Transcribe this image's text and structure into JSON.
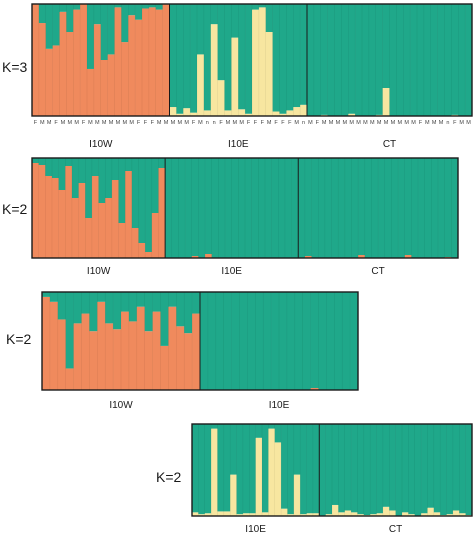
{
  "colors": {
    "orange": "#f08a5d",
    "green": "#1fa88a",
    "yellow": "#f7e6a0",
    "frame": "#1a1a1a"
  },
  "chart_data": [
    {
      "type": "bar",
      "stacked": true,
      "k_label": "K=3",
      "cluster_colors": [
        "#f08a5d",
        "#f7e6a0",
        "#1fa88a"
      ],
      "populations": [
        {
          "label": "I10W",
          "count": 20
        },
        {
          "label": "I10E",
          "count": 20
        },
        {
          "label": "CT",
          "count": 24
        }
      ],
      "sample_labels": [
        "F",
        "M",
        "M",
        "F",
        "M",
        "M",
        "M",
        "F",
        "M",
        "M",
        "M",
        "M",
        "M",
        "M",
        "M",
        "F",
        "F",
        "F",
        "M",
        "M",
        "M",
        "M",
        "M",
        "F",
        "M",
        "n",
        "n",
        "F",
        "M",
        "M",
        "M",
        "F",
        "F",
        "F",
        "M",
        "F",
        "F",
        "F",
        "M",
        "n",
        "M",
        "F",
        "M",
        "M",
        "M",
        "M",
        "M",
        "M",
        "M",
        "M",
        "M",
        "M",
        "M",
        "M",
        "M",
        "M",
        "F",
        "M",
        "M",
        "M",
        "n",
        "F",
        "M",
        "M"
      ],
      "ylim": [
        0,
        1
      ],
      "q": [
        [
          1,
          0,
          0
        ],
        [
          0.83,
          0,
          0.17
        ],
        [
          0.6,
          0,
          0.4
        ],
        [
          0.63,
          0,
          0.37
        ],
        [
          0.93,
          0,
          0.07
        ],
        [
          0.75,
          0,
          0.25
        ],
        [
          0.95,
          0,
          0.05
        ],
        [
          1,
          0,
          0
        ],
        [
          0.42,
          0,
          0.58
        ],
        [
          0.82,
          0,
          0.18
        ],
        [
          0.5,
          0,
          0.5
        ],
        [
          0.55,
          0,
          0.45
        ],
        [
          0.97,
          0,
          0.03
        ],
        [
          0.66,
          0,
          0.34
        ],
        [
          0.9,
          0,
          0.1
        ],
        [
          0.86,
          0,
          0.14
        ],
        [
          0.96,
          0,
          0.04
        ],
        [
          0.97,
          0,
          0.03
        ],
        [
          0.95,
          0,
          0.05
        ],
        [
          1,
          0,
          0
        ],
        [
          0,
          0.08,
          0.92
        ],
        [
          0,
          0.02,
          0.98
        ],
        [
          0,
          0.07,
          0.93
        ],
        [
          0,
          0.03,
          0.97
        ],
        [
          0,
          0.55,
          0.45
        ],
        [
          0,
          0.05,
          0.95
        ],
        [
          0,
          0.82,
          0.18
        ],
        [
          0,
          0.32,
          0.68
        ],
        [
          0,
          0.05,
          0.95
        ],
        [
          0,
          0.7,
          0.3
        ],
        [
          0,
          0.06,
          0.94
        ],
        [
          0,
          0.02,
          0.98
        ],
        [
          0,
          0.95,
          0.05
        ],
        [
          0,
          0.97,
          0.03
        ],
        [
          0,
          0.75,
          0.25
        ],
        [
          0,
          0.04,
          0.96
        ],
        [
          0,
          0.02,
          0.98
        ],
        [
          0,
          0.05,
          0.95
        ],
        [
          0,
          0.08,
          0.92
        ],
        [
          0,
          0.1,
          0.9
        ],
        [
          0,
          0,
          1
        ],
        [
          0,
          0,
          1
        ],
        [
          0,
          0.01,
          0.99
        ],
        [
          0,
          0,
          1
        ],
        [
          0,
          0,
          1
        ],
        [
          0,
          0,
          1
        ],
        [
          0,
          0.02,
          0.98
        ],
        [
          0,
          0,
          1
        ],
        [
          0,
          0,
          1
        ],
        [
          0,
          0,
          1
        ],
        [
          0,
          0.01,
          0.99
        ],
        [
          0,
          0.25,
          0.75
        ],
        [
          0,
          0,
          1
        ],
        [
          0,
          0,
          1
        ],
        [
          0,
          0,
          1
        ],
        [
          0,
          0,
          1
        ],
        [
          0,
          0,
          1
        ],
        [
          0,
          0,
          1
        ],
        [
          0,
          0,
          1
        ],
        [
          0,
          0,
          1
        ],
        [
          0,
          0,
          1
        ],
        [
          0,
          0.01,
          0.99
        ],
        [
          0,
          0,
          1
        ],
        [
          0,
          0,
          1
        ]
      ]
    },
    {
      "type": "bar",
      "stacked": true,
      "k_label": "K=2",
      "cluster_colors": [
        "#f08a5d",
        "#1fa88a"
      ],
      "populations": [
        {
          "label": "I10W",
          "count": 20
        },
        {
          "label": "I10E",
          "count": 20
        },
        {
          "label": "CT",
          "count": 24
        }
      ],
      "ylim": [
        0,
        1
      ],
      "q": [
        [
          0.95,
          0.05
        ],
        [
          0.93,
          0.07
        ],
        [
          0.82,
          0.18
        ],
        [
          0.8,
          0.2
        ],
        [
          0.68,
          0.32
        ],
        [
          0.92,
          0.08
        ],
        [
          0.6,
          0.4
        ],
        [
          0.75,
          0.25
        ],
        [
          0.4,
          0.6
        ],
        [
          0.82,
          0.18
        ],
        [
          0.55,
          0.45
        ],
        [
          0.6,
          0.4
        ],
        [
          0.78,
          0.22
        ],
        [
          0.35,
          0.65
        ],
        [
          0.87,
          0.13
        ],
        [
          0.3,
          0.7
        ],
        [
          0.15,
          0.85
        ],
        [
          0.06,
          0.94
        ],
        [
          0.45,
          0.55
        ],
        [
          0.9,
          0.1
        ],
        [
          0,
          1
        ],
        [
          0,
          1
        ],
        [
          0,
          1
        ],
        [
          0,
          1
        ],
        [
          0.02,
          0.98
        ],
        [
          0,
          1
        ],
        [
          0.04,
          0.96
        ],
        [
          0,
          1
        ],
        [
          0,
          1
        ],
        [
          0,
          1
        ],
        [
          0,
          1
        ],
        [
          0,
          1
        ],
        [
          0,
          1
        ],
        [
          0,
          1
        ],
        [
          0,
          1
        ],
        [
          0,
          1
        ],
        [
          0,
          1
        ],
        [
          0,
          1
        ],
        [
          0,
          1
        ],
        [
          0,
          1
        ],
        [
          0,
          1
        ],
        [
          0.02,
          0.98
        ],
        [
          0,
          1
        ],
        [
          0,
          1
        ],
        [
          0,
          1
        ],
        [
          0,
          1
        ],
        [
          0,
          1
        ],
        [
          0,
          1
        ],
        [
          0,
          1
        ],
        [
          0.03,
          0.97
        ],
        [
          0,
          1
        ],
        [
          0,
          1
        ],
        [
          0,
          1
        ],
        [
          0,
          1
        ],
        [
          0,
          1
        ],
        [
          0,
          1
        ],
        [
          0.03,
          0.97
        ],
        [
          0,
          1
        ],
        [
          0,
          1
        ],
        [
          0,
          1
        ],
        [
          0,
          1
        ],
        [
          0,
          1
        ],
        [
          0.01,
          0.99
        ],
        [
          0,
          1
        ]
      ]
    },
    {
      "type": "bar",
      "stacked": true,
      "k_label": "K=2",
      "cluster_colors": [
        "#f08a5d",
        "#1fa88a"
      ],
      "populations": [
        {
          "label": "I10W",
          "count": 20
        },
        {
          "label": "I10E",
          "count": 20
        }
      ],
      "ylim": [
        0,
        1
      ],
      "q": [
        [
          0.95,
          0.05
        ],
        [
          0.9,
          0.1
        ],
        [
          0.72,
          0.28
        ],
        [
          0.22,
          0.78
        ],
        [
          0.68,
          0.32
        ],
        [
          0.78,
          0.22
        ],
        [
          0.6,
          0.4
        ],
        [
          0.9,
          0.1
        ],
        [
          0.68,
          0.32
        ],
        [
          0.62,
          0.38
        ],
        [
          0.8,
          0.2
        ],
        [
          0.7,
          0.3
        ],
        [
          0.85,
          0.15
        ],
        [
          0.6,
          0.4
        ],
        [
          0.8,
          0.2
        ],
        [
          0.45,
          0.55
        ],
        [
          0.85,
          0.15
        ],
        [
          0.65,
          0.35
        ],
        [
          0.58,
          0.42
        ],
        [
          0.78,
          0.22
        ],
        [
          0,
          1
        ],
        [
          0,
          1
        ],
        [
          0,
          1
        ],
        [
          0,
          1
        ],
        [
          0,
          1
        ],
        [
          0,
          1
        ],
        [
          0,
          1
        ],
        [
          0,
          1
        ],
        [
          0,
          1
        ],
        [
          0,
          1
        ],
        [
          0,
          1
        ],
        [
          0,
          1
        ],
        [
          0,
          1
        ],
        [
          0,
          1
        ],
        [
          0.02,
          0.98
        ],
        [
          0,
          1
        ],
        [
          0,
          1
        ],
        [
          0,
          1
        ],
        [
          0,
          1
        ],
        [
          0,
          1
        ]
      ]
    },
    {
      "type": "bar",
      "stacked": true,
      "k_label": "K=2",
      "cluster_colors": [
        "#f7e6a0",
        "#1fa88a"
      ],
      "populations": [
        {
          "label": "I10E",
          "count": 20
        },
        {
          "label": "CT",
          "count": 24
        }
      ],
      "ylim": [
        0,
        1
      ],
      "q": [
        [
          0.04,
          0.96
        ],
        [
          0.02,
          0.98
        ],
        [
          0.03,
          0.97
        ],
        [
          0.95,
          0.05
        ],
        [
          0.05,
          0.95
        ],
        [
          0.05,
          0.95
        ],
        [
          0.45,
          0.55
        ],
        [
          0.02,
          0.98
        ],
        [
          0.03,
          0.97
        ],
        [
          0.03,
          0.97
        ],
        [
          0.85,
          0.15
        ],
        [
          0.04,
          0.96
        ],
        [
          0.95,
          0.05
        ],
        [
          0.8,
          0.2
        ],
        [
          0.08,
          0.92
        ],
        [
          0.02,
          0.98
        ],
        [
          0.45,
          0.55
        ],
        [
          0.02,
          0.98
        ],
        [
          0.03,
          0.97
        ],
        [
          0.03,
          0.97
        ],
        [
          0,
          1
        ],
        [
          0.02,
          0.98
        ],
        [
          0.12,
          0.88
        ],
        [
          0.04,
          0.96
        ],
        [
          0.06,
          0.94
        ],
        [
          0.04,
          0.96
        ],
        [
          0.02,
          0.98
        ],
        [
          0.01,
          0.99
        ],
        [
          0.02,
          0.98
        ],
        [
          0.03,
          0.97
        ],
        [
          0.1,
          0.9
        ],
        [
          0.06,
          0.94
        ],
        [
          0,
          1
        ],
        [
          0.04,
          0.96
        ],
        [
          0.02,
          0.98
        ],
        [
          0,
          1
        ],
        [
          0.03,
          0.97
        ],
        [
          0.09,
          0.91
        ],
        [
          0.04,
          0.96
        ],
        [
          0.01,
          0.99
        ],
        [
          0.02,
          0.98
        ],
        [
          0.06,
          0.94
        ],
        [
          0.03,
          0.97
        ],
        [
          0.01,
          0.99
        ]
      ]
    }
  ]
}
